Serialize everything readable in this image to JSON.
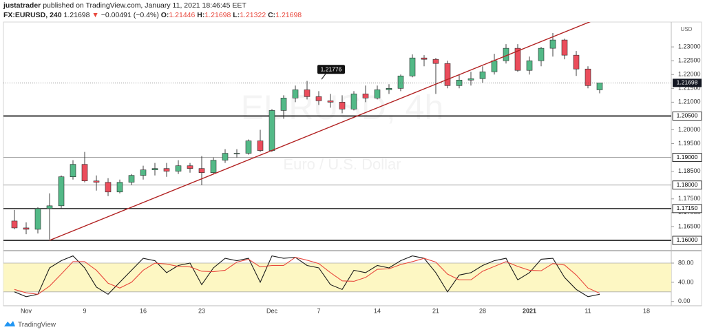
{
  "header": {
    "author": "justatrader",
    "published": "published on TradingView.com, January 11, 2021 18:46:45 EET",
    "symbol": "FX:EURUSD, 240",
    "last": "1.21698",
    "arrow": "▼",
    "change": "−0.00491 (−0.4%)",
    "ohlc": [
      {
        "key": "O:",
        "value": "1.21446"
      },
      {
        "key": "H:",
        "value": "1.21698"
      },
      {
        "key": "L:",
        "value": "1.21322"
      },
      {
        "key": "C:",
        "value": "1.21698"
      }
    ]
  },
  "chart_data": [
    {
      "type": "candlestick",
      "watermark": "EURUSD, 4h",
      "watermark_subtitle": "Euro / U.S. Dollar",
      "currency": "USD",
      "categories": [
        null,
        "Nov",
        null,
        null,
        null,
        null,
        "9",
        null,
        null,
        null,
        null,
        "16",
        null,
        null,
        null,
        null,
        "23",
        null,
        null,
        null,
        null,
        null,
        "Dec",
        null,
        null,
        null,
        "7",
        null,
        null,
        null,
        null,
        "14",
        null,
        null,
        null,
        null,
        "21",
        null,
        null,
        null,
        "28",
        null,
        null,
        null,
        "2021",
        null,
        null,
        null,
        null,
        "11",
        null,
        null,
        null,
        null,
        "18"
      ],
      "open": [
        1.167,
        1.1645,
        1.164,
        1.1715,
        1.1725,
        1.183,
        1.1875,
        1.1815,
        1.181,
        1.1775,
        1.181,
        1.1835,
        1.1855,
        1.186,
        1.185,
        1.187,
        1.186,
        1.1845,
        1.189,
        1.1915,
        1.1915,
        1.196,
        1.1925,
        1.207,
        1.2115,
        1.2145,
        1.212,
        1.2105,
        1.21,
        1.2075,
        1.213,
        1.2115,
        1.2145,
        1.215,
        1.2195,
        1.226,
        1.2255,
        1.224,
        1.216,
        1.218,
        1.2185,
        1.221,
        1.225,
        1.2295,
        1.2215,
        1.225,
        1.2295,
        1.2325,
        1.227,
        1.222,
        1.21446,
        null,
        null,
        null,
        null
      ],
      "high": [
        1.171,
        1.1665,
        1.172,
        1.177,
        1.1835,
        1.189,
        1.192,
        1.1835,
        1.1825,
        1.182,
        1.184,
        1.187,
        1.188,
        1.188,
        1.189,
        1.188,
        1.1905,
        1.19,
        1.193,
        1.193,
        1.1965,
        1.2,
        1.2075,
        1.2125,
        1.216,
        1.2177,
        1.214,
        1.213,
        1.2125,
        1.214,
        1.216,
        1.216,
        1.2165,
        1.22,
        1.2273,
        1.227,
        1.226,
        1.225,
        1.22,
        1.221,
        1.223,
        1.2275,
        1.231,
        1.231,
        1.2265,
        1.23,
        1.235,
        1.233,
        1.2285,
        1.223,
        1.21698,
        null,
        null,
        null,
        null
      ],
      "low": [
        1.164,
        1.1622,
        1.1625,
        1.1603,
        1.1715,
        1.182,
        1.181,
        1.178,
        1.176,
        1.177,
        1.18,
        1.182,
        1.1835,
        1.183,
        1.184,
        1.1845,
        1.18,
        1.184,
        1.188,
        1.19,
        1.191,
        1.192,
        1.192,
        1.204,
        1.21,
        1.211,
        1.209,
        1.208,
        1.206,
        1.207,
        1.21,
        1.211,
        1.213,
        1.214,
        1.219,
        1.223,
        1.213,
        1.215,
        1.215,
        1.216,
        1.217,
        1.22,
        1.224,
        1.221,
        1.22,
        1.223,
        1.2265,
        1.2255,
        1.2195,
        1.215,
        1.21322,
        null,
        null,
        null,
        null
      ],
      "close": [
        1.1645,
        1.164,
        1.1715,
        1.1725,
        1.183,
        1.1875,
        1.1815,
        1.181,
        1.1775,
        1.181,
        1.1835,
        1.1855,
        1.186,
        1.185,
        1.187,
        1.186,
        1.1845,
        1.189,
        1.1915,
        1.1915,
        1.196,
        1.1925,
        1.207,
        1.2115,
        1.2145,
        1.212,
        1.2105,
        1.21,
        1.2075,
        1.213,
        1.2115,
        1.2145,
        1.215,
        1.2195,
        1.226,
        1.2255,
        1.224,
        1.216,
        1.218,
        1.2185,
        1.221,
        1.225,
        1.2295,
        1.2215,
        1.225,
        1.2295,
        1.2325,
        1.227,
        1.222,
        1.216,
        1.21698,
        null,
        null,
        null,
        null
      ],
      "up_color": "#53b987",
      "down_color": "#eb4d5c",
      "ylim": [
        1.15676,
        1.239
      ],
      "yticks": [
        {
          "value": 1.165,
          "label": "1.16500"
        },
        {
          "value": 1.17,
          "label": "1.17000"
        },
        {
          "value": 1.175,
          "label": "1.17500"
        },
        {
          "value": 1.185,
          "label": "1.18500"
        },
        {
          "value": 1.195,
          "label": "1.19500"
        },
        {
          "value": 1.2,
          "label": "1.20000"
        },
        {
          "value": 1.21,
          "label": "1.21000"
        },
        {
          "value": 1.215,
          "label": "1.21500"
        },
        {
          "value": 1.22,
          "label": "1.22000"
        },
        {
          "value": 1.225,
          "label": "1.22500"
        },
        {
          "value": 1.23,
          "label": "1.23000"
        }
      ],
      "levels": [
        {
          "value": 1.205,
          "label": "1.20500",
          "width": 1.6,
          "color": "#000000"
        },
        {
          "value": 1.19,
          "label": "1.19000",
          "width": 0.8,
          "color": "#888888"
        },
        {
          "value": 1.18,
          "label": "1.18000",
          "width": 0.8,
          "color": "#888888"
        },
        {
          "value": 1.1715,
          "label": "1.17150",
          "width": 1.2,
          "color": "#000000"
        },
        {
          "value": 1.16,
          "label": "1.16000",
          "width": 1.6,
          "color": "#000000"
        }
      ],
      "last_price": 1.21698,
      "callout": 1.21776,
      "trendline": {
        "values": [
          1.16,
          1.2405
        ],
        "color": "#b22222"
      }
    },
    {
      "type": "line",
      "series": [
        {
          "name": "%K",
          "color": "#1a1a1a",
          "values": [
            20,
            10,
            15,
            70,
            85,
            95,
            70,
            30,
            15,
            40,
            65,
            90,
            85,
            60,
            75,
            80,
            35,
            70,
            90,
            85,
            90,
            40,
            95,
            90,
            92,
            75,
            70,
            35,
            25,
            65,
            60,
            75,
            70,
            85,
            95,
            90,
            60,
            20,
            55,
            60,
            75,
            85,
            90,
            45,
            60,
            88,
            90,
            50,
            25,
            10,
            15,
            null,
            null,
            null,
            null
          ]
        },
        {
          "name": "%D",
          "color": "#e8473c",
          "values": [
            25,
            18,
            15,
            32,
            57,
            83,
            83,
            65,
            38,
            28,
            40,
            65,
            80,
            78,
            73,
            72,
            63,
            62,
            65,
            82,
            88,
            72,
            75,
            75,
            92,
            86,
            79,
            60,
            43,
            42,
            50,
            67,
            68,
            77,
            83,
            90,
            82,
            57,
            45,
            45,
            63,
            73,
            83,
            73,
            65,
            64,
            79,
            76,
            55,
            28,
            17,
            null,
            null,
            null,
            null
          ]
        }
      ],
      "band": [
        20,
        80
      ],
      "band_color": "#fdf7c3",
      "ylim": [
        -9,
        103
      ],
      "yticks": [
        {
          "value": 0,
          "label": "0.00"
        },
        {
          "value": 40,
          "label": "40.00"
        },
        {
          "value": 80,
          "label": "80.00"
        }
      ]
    }
  ],
  "footer": {
    "brand": "TradingView"
  }
}
